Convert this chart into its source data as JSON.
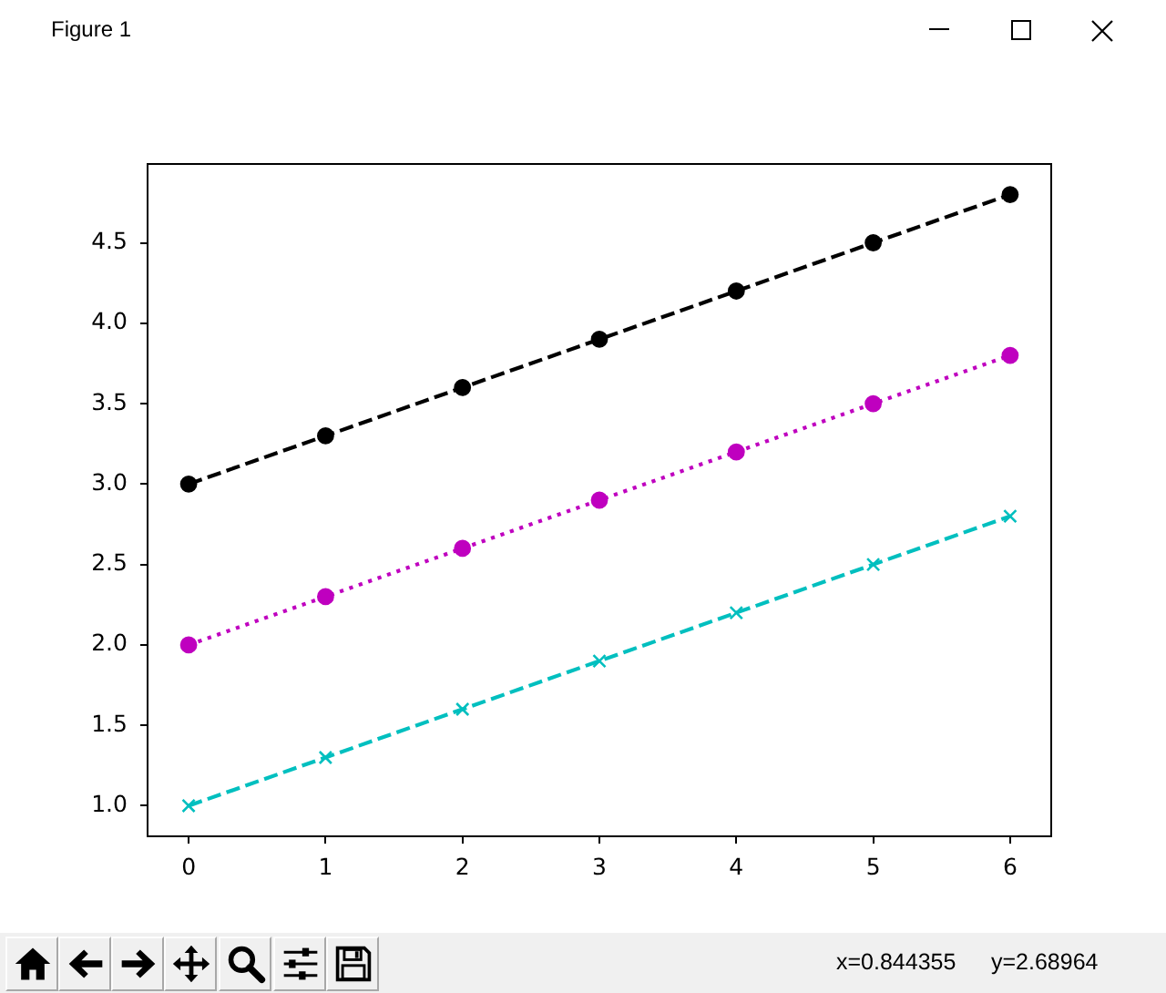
{
  "chart_data": {
    "type": "line",
    "x": [
      0,
      1,
      2,
      3,
      4,
      5,
      6
    ],
    "series": [
      {
        "color": "#000000",
        "values": [
          3.0,
          3.3,
          3.6,
          3.9,
          4.2,
          4.5,
          4.8
        ],
        "marker": "circle",
        "line_style": "dashed"
      },
      {
        "color": "#bf00bf",
        "values": [
          2.0,
          2.3,
          2.6,
          2.9,
          3.2,
          3.5,
          3.8
        ],
        "marker": "circle",
        "line_style": "dotted"
      },
      {
        "color": "#00bfbf",
        "values": [
          1.0,
          1.3,
          1.6,
          1.9,
          2.2,
          2.5,
          2.8
        ],
        "marker": "cross",
        "line_style": "dashed"
      }
    ],
    "xlim": [
      -0.3,
      6.3
    ],
    "ylim": [
      0.81,
      4.99
    ],
    "xticks": [
      0,
      1,
      2,
      3,
      4,
      5,
      6
    ],
    "yticks": [
      {
        "value": 1,
        "label": "1.0"
      },
      1.5,
      {
        "value": 2,
        "label": "2.0"
      },
      2.5,
      {
        "value": 3,
        "label": "3.0"
      },
      3.5,
      {
        "value": 4,
        "label": "4.0"
      },
      4.5
    ],
    "annotations": [
      "Figure 1",
      "x=0.844355",
      "y=2.68964"
    ]
  }
}
